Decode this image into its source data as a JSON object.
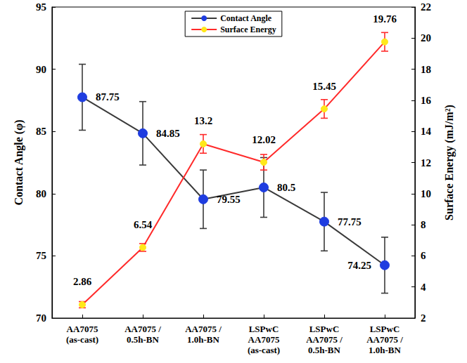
{
  "chart_data": {
    "type": "line",
    "categories": [
      "AA7075\n(as-cast)",
      "AA7075 /\n0.5h-BN",
      "AA7075 /\n1.0h-BN",
      "LSPwC\nAA7075\n(as-cast)",
      "LSPwC\nAA7075 /\n0.5h-BN",
      "LSPwC\nAA7075 /\n1.0h-BN"
    ],
    "series": [
      {
        "name": "Contact Angle",
        "color": "#1f3de0",
        "marker": "circle",
        "values": [
          87.75,
          84.85,
          79.55,
          80.5,
          77.75,
          74.25
        ],
        "errors": [
          2.65,
          2.55,
          2.35,
          2.4,
          2.35,
          2.25
        ]
      },
      {
        "name": "Surface Energy",
        "color": "#ffe81a",
        "marker": "circle",
        "axis": "y2",
        "values": [
          2.86,
          6.54,
          13.2,
          12.02,
          15.45,
          19.76
        ],
        "errors": [
          0.2,
          0.25,
          0.6,
          0.5,
          0.6,
          0.6
        ]
      }
    ],
    "y_label": "Contact Angle (φ)",
    "y2_label": "Surface Energy (mJ/m²)",
    "ylim": [
      70,
      95
    ],
    "yticks": [
      70,
      75,
      80,
      85,
      90,
      95
    ],
    "y2lim": [
      2,
      22
    ],
    "y2ticks": [
      2,
      4,
      6,
      8,
      10,
      12,
      14,
      16,
      18,
      20,
      22
    ],
    "data_labels": true,
    "legend": "top",
    "grid": false
  }
}
